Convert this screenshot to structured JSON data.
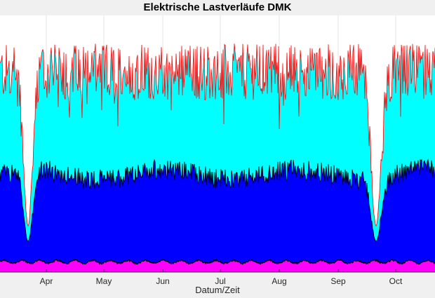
{
  "chart_data": {
    "type": "area",
    "title": "Elektrische Lastverläufe DMK",
    "xlabel": "Datum/Zeit",
    "ylabel": "",
    "x_tick_labels": [
      "Apr",
      "May",
      "Jun",
      "Jul",
      "Aug",
      "Sep",
      "Oct"
    ],
    "x_range_note": "mid-March to late October",
    "grid": true,
    "legend": "none",
    "series": [
      {
        "color": "#ff00ff",
        "level_fraction": 0.04,
        "trace_color": "#000000"
      },
      {
        "color": "#0000ff",
        "level_fraction": 0.38,
        "trace_color": "#000000"
      },
      {
        "color": "#00ffff",
        "level_fraction": 0.78,
        "trace_color": "#ff0000"
      }
    ],
    "annotations": [
      {
        "event": "load dip",
        "near": "late March"
      },
      {
        "event": "load dip",
        "near": "late September"
      }
    ]
  }
}
